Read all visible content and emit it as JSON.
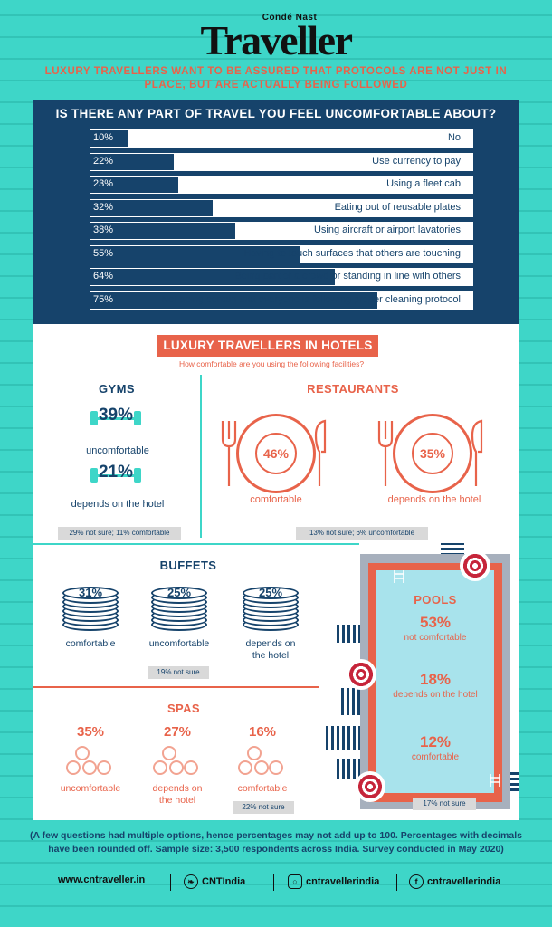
{
  "brand": {
    "line1": "Condé Nast",
    "line2": "Traveller"
  },
  "tagline": "Luxury travellers want to be assured that protocols are not just in place, but are actually being followed",
  "survey": {
    "title": "IS THERE ANY PART OF TRAVEL YOU FEEL UNCOMFORTABLE ABOUT?",
    "rows": [
      {
        "pct": "10%",
        "value": 10,
        "label": "No"
      },
      {
        "pct": "22%",
        "value": 22,
        "label": "Use currency to pay"
      },
      {
        "pct": "23%",
        "value": 23,
        "label": "Using a fleet cab"
      },
      {
        "pct": "32%",
        "value": 32,
        "label": "Eating out of reusable plates"
      },
      {
        "pct": "38%",
        "value": 38,
        "label": "Using aircraft or airport lavatories"
      },
      {
        "pct": "55%",
        "value": 55,
        "label": "Having to touch surfaces that others are touching"
      },
      {
        "pct": "64%",
        "value": 64,
        "label": "Being part of a crowd or standing in line with others"
      },
      {
        "pct": "75%",
        "value": 75,
        "label": "Not being certain that everyone is following proper cleaning protocol"
      }
    ]
  },
  "hotels": {
    "title": "LUXURY TRAVELLERS IN HOTELS",
    "subtitle": "How comfortable are you using the following facilities?"
  },
  "gyms": {
    "title": "GYMS",
    "stat1": {
      "pct": "39%",
      "label": "uncomfortable"
    },
    "stat2": {
      "pct": "21%",
      "label": "depends on the hotel"
    },
    "note": "29% not sure; 11% comfortable"
  },
  "restaurants": {
    "title": "RESTAURANTS",
    "stat1": {
      "pct": "46%",
      "label": "comfortable"
    },
    "stat2": {
      "pct": "35%",
      "label": "depends on the hotel"
    },
    "note": "13% not sure; 6% uncomfortable"
  },
  "buffets": {
    "title": "BUFFETS",
    "stats": [
      {
        "pct": "31%",
        "label": "comfortable"
      },
      {
        "pct": "25%",
        "label": "uncomfortable"
      },
      {
        "pct": "25%",
        "label": "depends on the hotel"
      }
    ],
    "note": "19% not sure"
  },
  "spas": {
    "title": "SPAS",
    "stats": [
      {
        "pct": "35%",
        "label": "uncomfortable"
      },
      {
        "pct": "27%",
        "label": "depends on the hotel"
      },
      {
        "pct": "16%",
        "label": "comfortable"
      }
    ],
    "note": "22% not sure"
  },
  "pools": {
    "title": "POOLS",
    "stats": [
      {
        "pct": "53%",
        "label": "not comfortable"
      },
      {
        "pct": "18%",
        "label": "depends on the hotel"
      },
      {
        "pct": "12%",
        "label": "comfortable"
      }
    ],
    "note": "17% not sure"
  },
  "footnote": "(A few questions had multiple options, hence percentages may not add up to 100. Percentages with decimals have been rounded off. Sample size: 3,500 respondents across India. Survey conducted in May 2020)",
  "footer": {
    "website": "www.cntraveller.in",
    "twitter": "CNTIndia",
    "instagram": "cntravellerindia",
    "facebook": "cntravellerindia"
  },
  "colors": {
    "background": "#3ed6c8",
    "navy": "#16436b",
    "coral": "#e8634a",
    "red": "#c6253a"
  }
}
